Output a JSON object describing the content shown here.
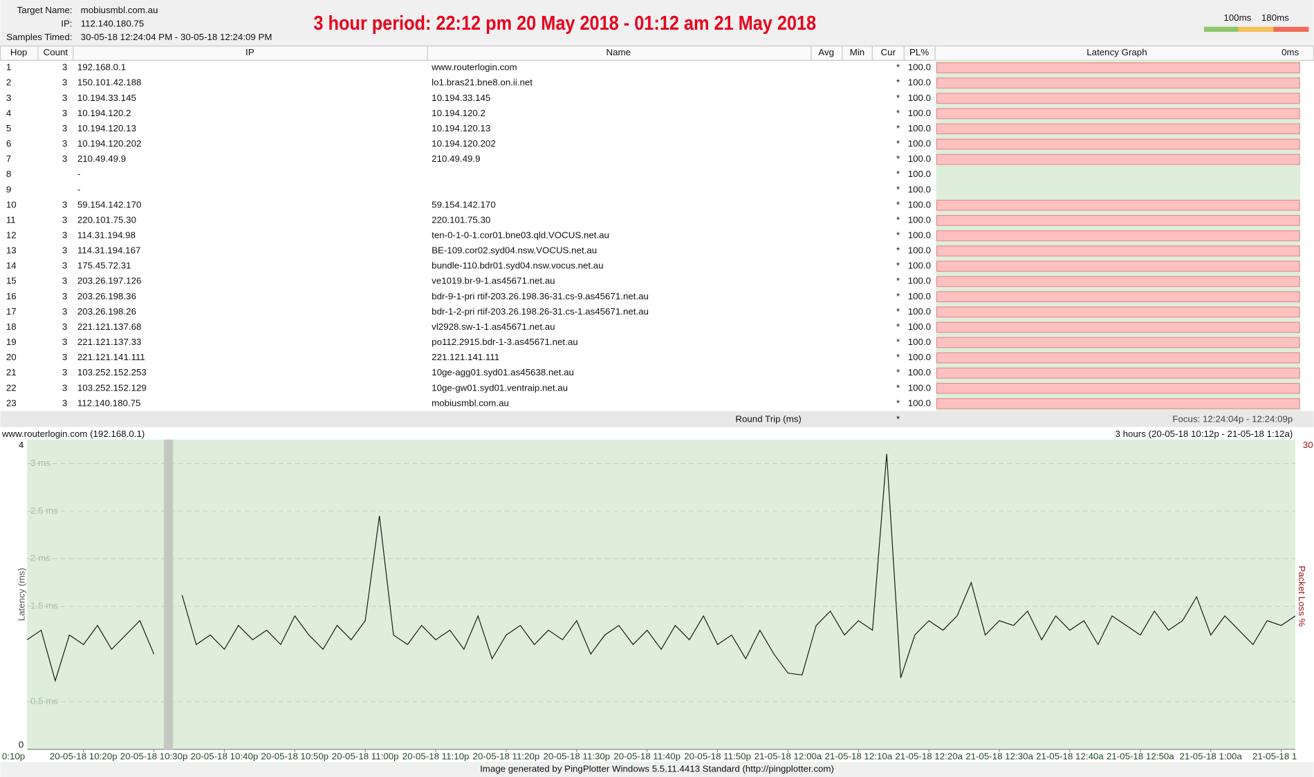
{
  "header": {
    "target_name_label": "Target Name:",
    "target_name": "mobiusmbl.com.au",
    "ip_label": "IP:",
    "ip": "112.140.180.75",
    "samples_label": "Samples Timed:",
    "samples": "30-05-18 12:24:04 PM - 30-05-18 12:24:09 PM",
    "annotation": "3 hour period:  22:12 pm 20 May 2018 - 01:12 am 21 May 2018",
    "legend_labels": [
      "100ms",
      "180ms"
    ]
  },
  "table": {
    "columns": [
      "Hop",
      "Count",
      "IP",
      "Name",
      "Avg",
      "Min",
      "Cur",
      "PL%",
      "Latency Graph",
      "0ms"
    ],
    "rows": [
      {
        "hop": "1",
        "count": "3",
        "ip": "192.168.0.1",
        "name": "www.routerlogin.com",
        "cur": "*",
        "pl": "100.0"
      },
      {
        "hop": "2",
        "count": "3",
        "ip": "150.101.42.188",
        "name": "lo1.bras21.bne8.on.ii.net",
        "cur": "*",
        "pl": "100.0"
      },
      {
        "hop": "3",
        "count": "3",
        "ip": "10.194.33.145",
        "name": "10.194.33.145",
        "cur": "*",
        "pl": "100.0"
      },
      {
        "hop": "4",
        "count": "3",
        "ip": "10.194.120.2",
        "name": "10.194.120.2",
        "cur": "*",
        "pl": "100.0"
      },
      {
        "hop": "5",
        "count": "3",
        "ip": "10.194.120.13",
        "name": "10.194.120.13",
        "cur": "*",
        "pl": "100.0"
      },
      {
        "hop": "6",
        "count": "3",
        "ip": "10.194.120.202",
        "name": "10.194.120.202",
        "cur": "*",
        "pl": "100.0"
      },
      {
        "hop": "7",
        "count": "3",
        "ip": "210.49.49.9",
        "name": "210.49.49.9",
        "cur": "*",
        "pl": "100.0"
      },
      {
        "hop": "8",
        "ip": "-",
        "cur": "*",
        "pl": "100.0"
      },
      {
        "hop": "9",
        "ip": "-",
        "cur": "*",
        "pl": "100.0"
      },
      {
        "hop": "10",
        "count": "3",
        "ip": "59.154.142.170",
        "name": "59.154.142.170",
        "cur": "*",
        "pl": "100.0"
      },
      {
        "hop": "11",
        "count": "3",
        "ip": "220.101.75.30",
        "name": "220.101.75.30",
        "cur": "*",
        "pl": "100.0"
      },
      {
        "hop": "12",
        "count": "3",
        "ip": "114.31.194.98",
        "name": "ten-0-1-0-1.cor01.bne03.qld.VOCUS.net.au",
        "cur": "*",
        "pl": "100.0"
      },
      {
        "hop": "13",
        "count": "3",
        "ip": "114.31.194.167",
        "name": "BE-109.cor02.syd04.nsw.VOCUS.net.au",
        "cur": "*",
        "pl": "100.0"
      },
      {
        "hop": "14",
        "count": "3",
        "ip": "175.45.72.31",
        "name": "bundle-110.bdr01.syd04.nsw.vocus.net.au",
        "cur": "*",
        "pl": "100.0"
      },
      {
        "hop": "15",
        "count": "3",
        "ip": "203.26.197.126",
        "name": "ve1019.br-9-1.as45671.net.au",
        "cur": "*",
        "pl": "100.0"
      },
      {
        "hop": "16",
        "count": "3",
        "ip": "203.26.198.36",
        "name": "bdr-9-1-pri rtif-203.26.198.36-31.cs-9.as45671.net.au",
        "cur": "*",
        "pl": "100.0"
      },
      {
        "hop": "17",
        "count": "3",
        "ip": "203.26.198.26",
        "name": "bdr-1-2-pri rtif-203.26.198.26-31.cs-1.as45671.net.au",
        "cur": "*",
        "pl": "100.0"
      },
      {
        "hop": "18",
        "count": "3",
        "ip": "221.121.137.68",
        "name": "vl2928.sw-1-1.as45671.net.au",
        "cur": "*",
        "pl": "100.0"
      },
      {
        "hop": "19",
        "count": "3",
        "ip": "221.121.137.33",
        "name": "po112.2915.bdr-1-3.as45671.net.au",
        "cur": "*",
        "pl": "100.0"
      },
      {
        "hop": "20",
        "count": "3",
        "ip": "221.121.141.111",
        "name": "221.121.141.111",
        "cur": "*",
        "pl": "100.0"
      },
      {
        "hop": "21",
        "count": "3",
        "ip": "103.252.152.253",
        "name": "10ge-agg01.syd01.as45638.net.au",
        "cur": "*",
        "pl": "100.0"
      },
      {
        "hop": "22",
        "count": "3",
        "ip": "103.252.152.129",
        "name": "10ge-gw01.syd01.ventraip.net.au",
        "cur": "*",
        "pl": "100.0"
      },
      {
        "hop": "23",
        "count": "3",
        "ip": "112.140.180.75",
        "name": "mobiusmbl.com.au",
        "cur": "*",
        "pl": "100.0"
      }
    ],
    "summary": {
      "label": "Round Trip (ms)",
      "cur": "*",
      "focus": "Focus: 12:24:04p - 12:24:09p"
    }
  },
  "chart_data": {
    "type": "line",
    "title": "www.routerlogin.com (192.168.0.1)",
    "subtitle": "3 hours (20-05-18 10:12p - 21-05-18 1:12a)",
    "y_label": "Latency (ms)",
    "y2_label": "Packet Loss %",
    "y_end_labels": [
      "4",
      "0"
    ],
    "color": "#1a1a1a",
    "grid": true,
    "xlim": [
      1332,
      1512
    ],
    "xticks": [
      {
        "value": 1330,
        "label": "0:10p"
      },
      {
        "value": 1340,
        "label": "20-05-18 10:20p"
      },
      {
        "value": 1350,
        "label": "20-05-18 10:30p"
      },
      {
        "value": 1360,
        "label": "20-05-18 10:40p"
      },
      {
        "value": 1370,
        "label": "20-05-18 10:50p"
      },
      {
        "value": 1380,
        "label": "20-05-18 11:00p"
      },
      {
        "value": 1390,
        "label": "20-05-18 11:10p"
      },
      {
        "value": 1400,
        "label": "20-05-18 11:20p"
      },
      {
        "value": 1410,
        "label": "20-05-18 11:30p"
      },
      {
        "value": 1420,
        "label": "20-05-18 11:40p"
      },
      {
        "value": 1430,
        "label": "20-05-18 11:50p"
      },
      {
        "value": 1440,
        "label": "21-05-18 12:00a"
      },
      {
        "value": 1450,
        "label": "21-05-18 12:10a"
      },
      {
        "value": 1460,
        "label": "21-05-18 12:20a"
      },
      {
        "value": 1470,
        "label": "21-05-18 12:30a"
      },
      {
        "value": 1480,
        "label": "21-05-18 12:40a"
      },
      {
        "value": 1490,
        "label": "21-05-18 12:50a"
      },
      {
        "value": 1500,
        "label": "21-05-18 1:00a"
      },
      {
        "value": 1510,
        "label": "21-05-18 1"
      }
    ],
    "ylim": [
      0,
      3.25
    ],
    "yticks": [
      {
        "value": 0.5,
        "label": "0.5 ms"
      },
      {
        "value": 1.5,
        "label": "1.5 ms"
      },
      {
        "value": 2,
        "label": "2 ms"
      },
      {
        "value": 2.5,
        "label": "2.5 ms"
      },
      {
        "value": 3,
        "label": "3 ms"
      }
    ],
    "y2lim": [
      0,
      30
    ],
    "y2ticks": [
      30
    ],
    "x": [
      1332,
      1334,
      1336,
      1338,
      1340,
      1342,
      1344,
      1346,
      1348,
      1350,
      1352,
      1354,
      1356,
      1358,
      1360,
      1362,
      1364,
      1366,
      1368,
      1370,
      1372,
      1374,
      1376,
      1378,
      1380,
      1382,
      1384,
      1386,
      1388,
      1390,
      1392,
      1394,
      1396,
      1398,
      1400,
      1402,
      1404,
      1406,
      1408,
      1410,
      1412,
      1414,
      1416,
      1418,
      1420,
      1422,
      1424,
      1426,
      1428,
      1430,
      1432,
      1434,
      1436,
      1438,
      1440,
      1442,
      1444,
      1446,
      1448,
      1450,
      1452,
      1454,
      1456,
      1458,
      1460,
      1462,
      1464,
      1466,
      1468,
      1470,
      1472,
      1474,
      1476,
      1478,
      1480,
      1482,
      1484,
      1486,
      1488,
      1490,
      1492,
      1494,
      1496,
      1498,
      1500,
      1502,
      1504,
      1506,
      1508,
      1510,
      1512
    ],
    "values": [
      1.15,
      1.25,
      0.72,
      1.2,
      1.1,
      1.3,
      1.05,
      1.2,
      1.35,
      1.0,
      null,
      1.62,
      1.1,
      1.2,
      1.05,
      1.3,
      1.15,
      1.25,
      1.1,
      1.4,
      1.2,
      1.05,
      1.3,
      1.15,
      1.35,
      2.45,
      1.2,
      1.1,
      1.3,
      1.15,
      1.25,
      1.05,
      1.4,
      0.95,
      1.2,
      1.3,
      1.1,
      1.25,
      1.15,
      1.35,
      1.0,
      1.2,
      1.3,
      1.1,
      1.25,
      1.05,
      1.3,
      1.15,
      1.4,
      1.1,
      1.2,
      0.95,
      1.25,
      1.0,
      0.8,
      0.78,
      1.3,
      1.45,
      1.2,
      1.35,
      1.25,
      3.1,
      0.75,
      1.2,
      1.35,
      1.25,
      1.4,
      1.75,
      1.2,
      1.35,
      1.3,
      1.45,
      1.15,
      1.4,
      1.25,
      1.35,
      1.1,
      1.4,
      1.3,
      1.2,
      1.45,
      1.25,
      1.35,
      1.6,
      1.2,
      1.4,
      1.25,
      1.1,
      1.35,
      1.3,
      1.4
    ]
  },
  "footer": "Image generated by PingPlotter Windows 5.5.11.4413 Standard (http://pingplotter.com)"
}
